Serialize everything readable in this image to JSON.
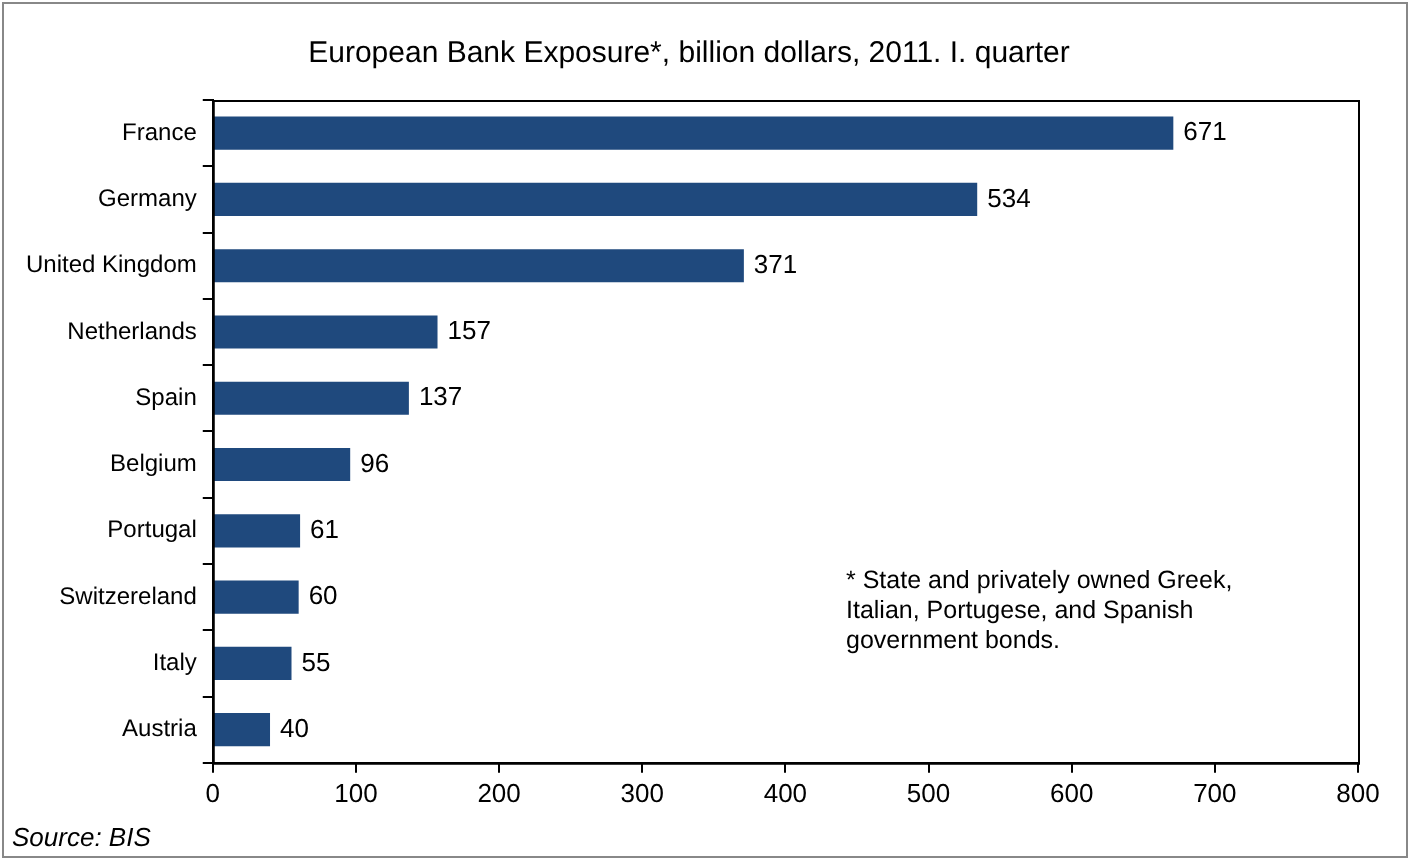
{
  "chart_data": {
    "type": "bar",
    "orientation": "horizontal",
    "title": "European Bank Exposure*, billion dollars, 2011. I. quarter",
    "categories": [
      "France",
      "Germany",
      "United Kingdom",
      "Netherlands",
      "Spain",
      "Belgium",
      "Portugal",
      "Switzereland",
      "Italy",
      "Austria"
    ],
    "values": [
      671,
      534,
      371,
      157,
      137,
      96,
      61,
      60,
      55,
      40
    ],
    "color": "#1f497d",
    "xlim": [
      0,
      800
    ],
    "xticks": [
      0,
      100,
      200,
      300,
      400,
      500,
      600,
      700,
      800
    ],
    "grid": false,
    "data_labels": true,
    "annotations": [
      "* State and privately owned Greek, Italian, Portugese, and Spanish government bonds.",
      "Source: BIS"
    ]
  }
}
